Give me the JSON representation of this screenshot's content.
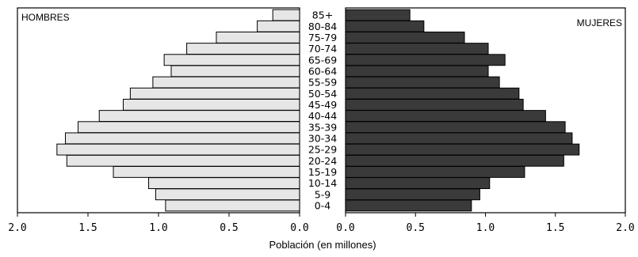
{
  "chart_data": {
    "type": "bar",
    "subtype": "population-pyramid",
    "title": "",
    "xlabel": "Población (en millones)",
    "ylabel": "",
    "xlim": [
      0,
      2.0
    ],
    "x_ticks_left": [
      "2.0",
      "1.5",
      "1.0",
      "0.5",
      "0.0"
    ],
    "x_ticks_right": [
      "0.0",
      "0.5",
      "1.0",
      "1.5",
      "2.0"
    ],
    "grid": false,
    "categories": [
      "0-4",
      "5-9",
      "10-14",
      "15-19",
      "20-24",
      "25-29",
      "30-34",
      "35-39",
      "40-44",
      "45-49",
      "50-54",
      "55-59",
      "60-64",
      "65-69",
      "70-74",
      "75-79",
      "80-84",
      "85+"
    ],
    "series": [
      {
        "name": "HOMBRES",
        "side": "left",
        "color": "#e6e6e6",
        "values": [
          0.95,
          1.02,
          1.07,
          1.32,
          1.65,
          1.72,
          1.66,
          1.57,
          1.42,
          1.25,
          1.2,
          1.04,
          0.91,
          0.96,
          0.8,
          0.59,
          0.3,
          0.19
        ]
      },
      {
        "name": "MUJERES",
        "side": "right",
        "color": "#3a3a3a",
        "values": [
          0.9,
          0.96,
          1.03,
          1.28,
          1.56,
          1.67,
          1.62,
          1.57,
          1.43,
          1.27,
          1.24,
          1.1,
          1.02,
          1.14,
          1.02,
          0.85,
          0.56,
          0.46
        ]
      }
    ]
  }
}
